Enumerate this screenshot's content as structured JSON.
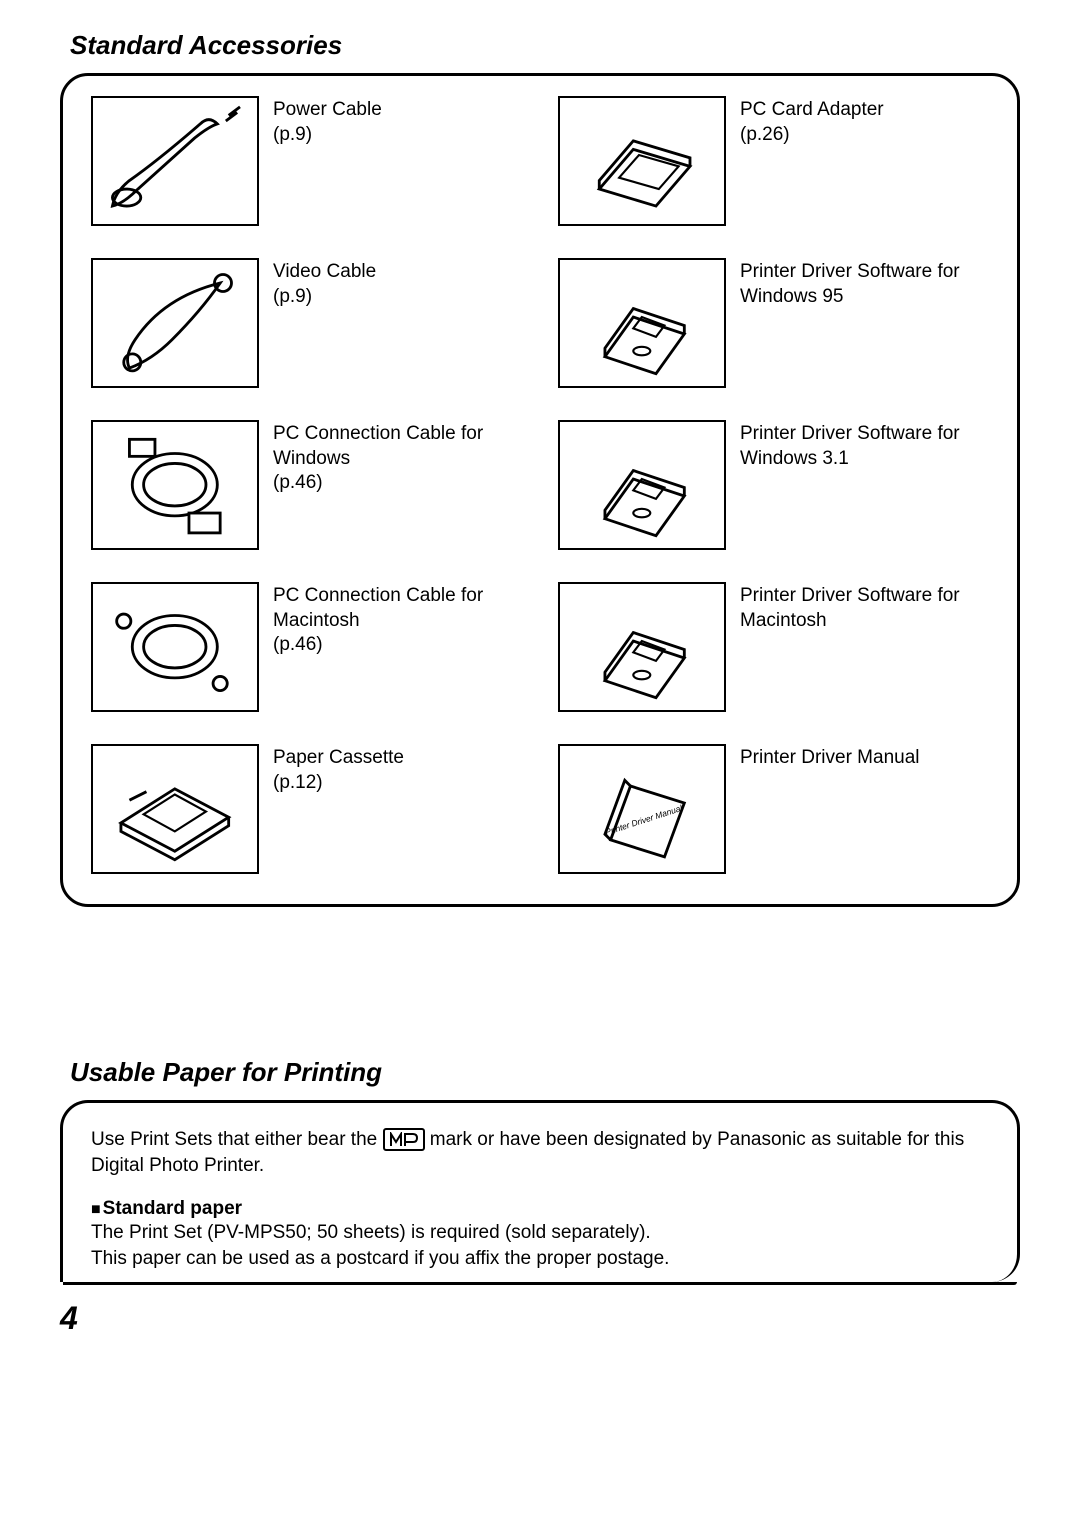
{
  "section1_title": "Standard Accessories",
  "accessories": {
    "left": [
      {
        "label": "Power Cable\n(p.9)"
      },
      {
        "label": "Video Cable\n(p.9)"
      },
      {
        "label": "PC Connection Cable for Windows\n(p.46)"
      },
      {
        "label": "PC Connection Cable for Macintosh\n(p.46)"
      },
      {
        "label": "Paper Cassette\n(p.12)"
      }
    ],
    "right": [
      {
        "label": "PC Card Adapter\n(p.26)"
      },
      {
        "label": "Printer Driver Software for Windows 95"
      },
      {
        "label": "Printer Driver Software for Windows 3.1"
      },
      {
        "label": "Printer Driver Software for Macintosh"
      },
      {
        "label": "Printer Driver Manual"
      }
    ]
  },
  "section2_title": "Usable Paper for Printing",
  "paper_intro_a": "Use Print Sets that either bear the ",
  "paper_intro_b": " mark or have been designated by Panasonic as suitable for this Digital Photo Printer.",
  "paper_subhead": "Standard paper",
  "paper_body1": "The Print Set (PV-MPS50; 50 sheets) is required (sold separately).",
  "paper_body2": "This paper can be used as a postcard if you affix the proper postage.",
  "page_number": "4",
  "manual_cover_text": "Printer Driver Manual"
}
